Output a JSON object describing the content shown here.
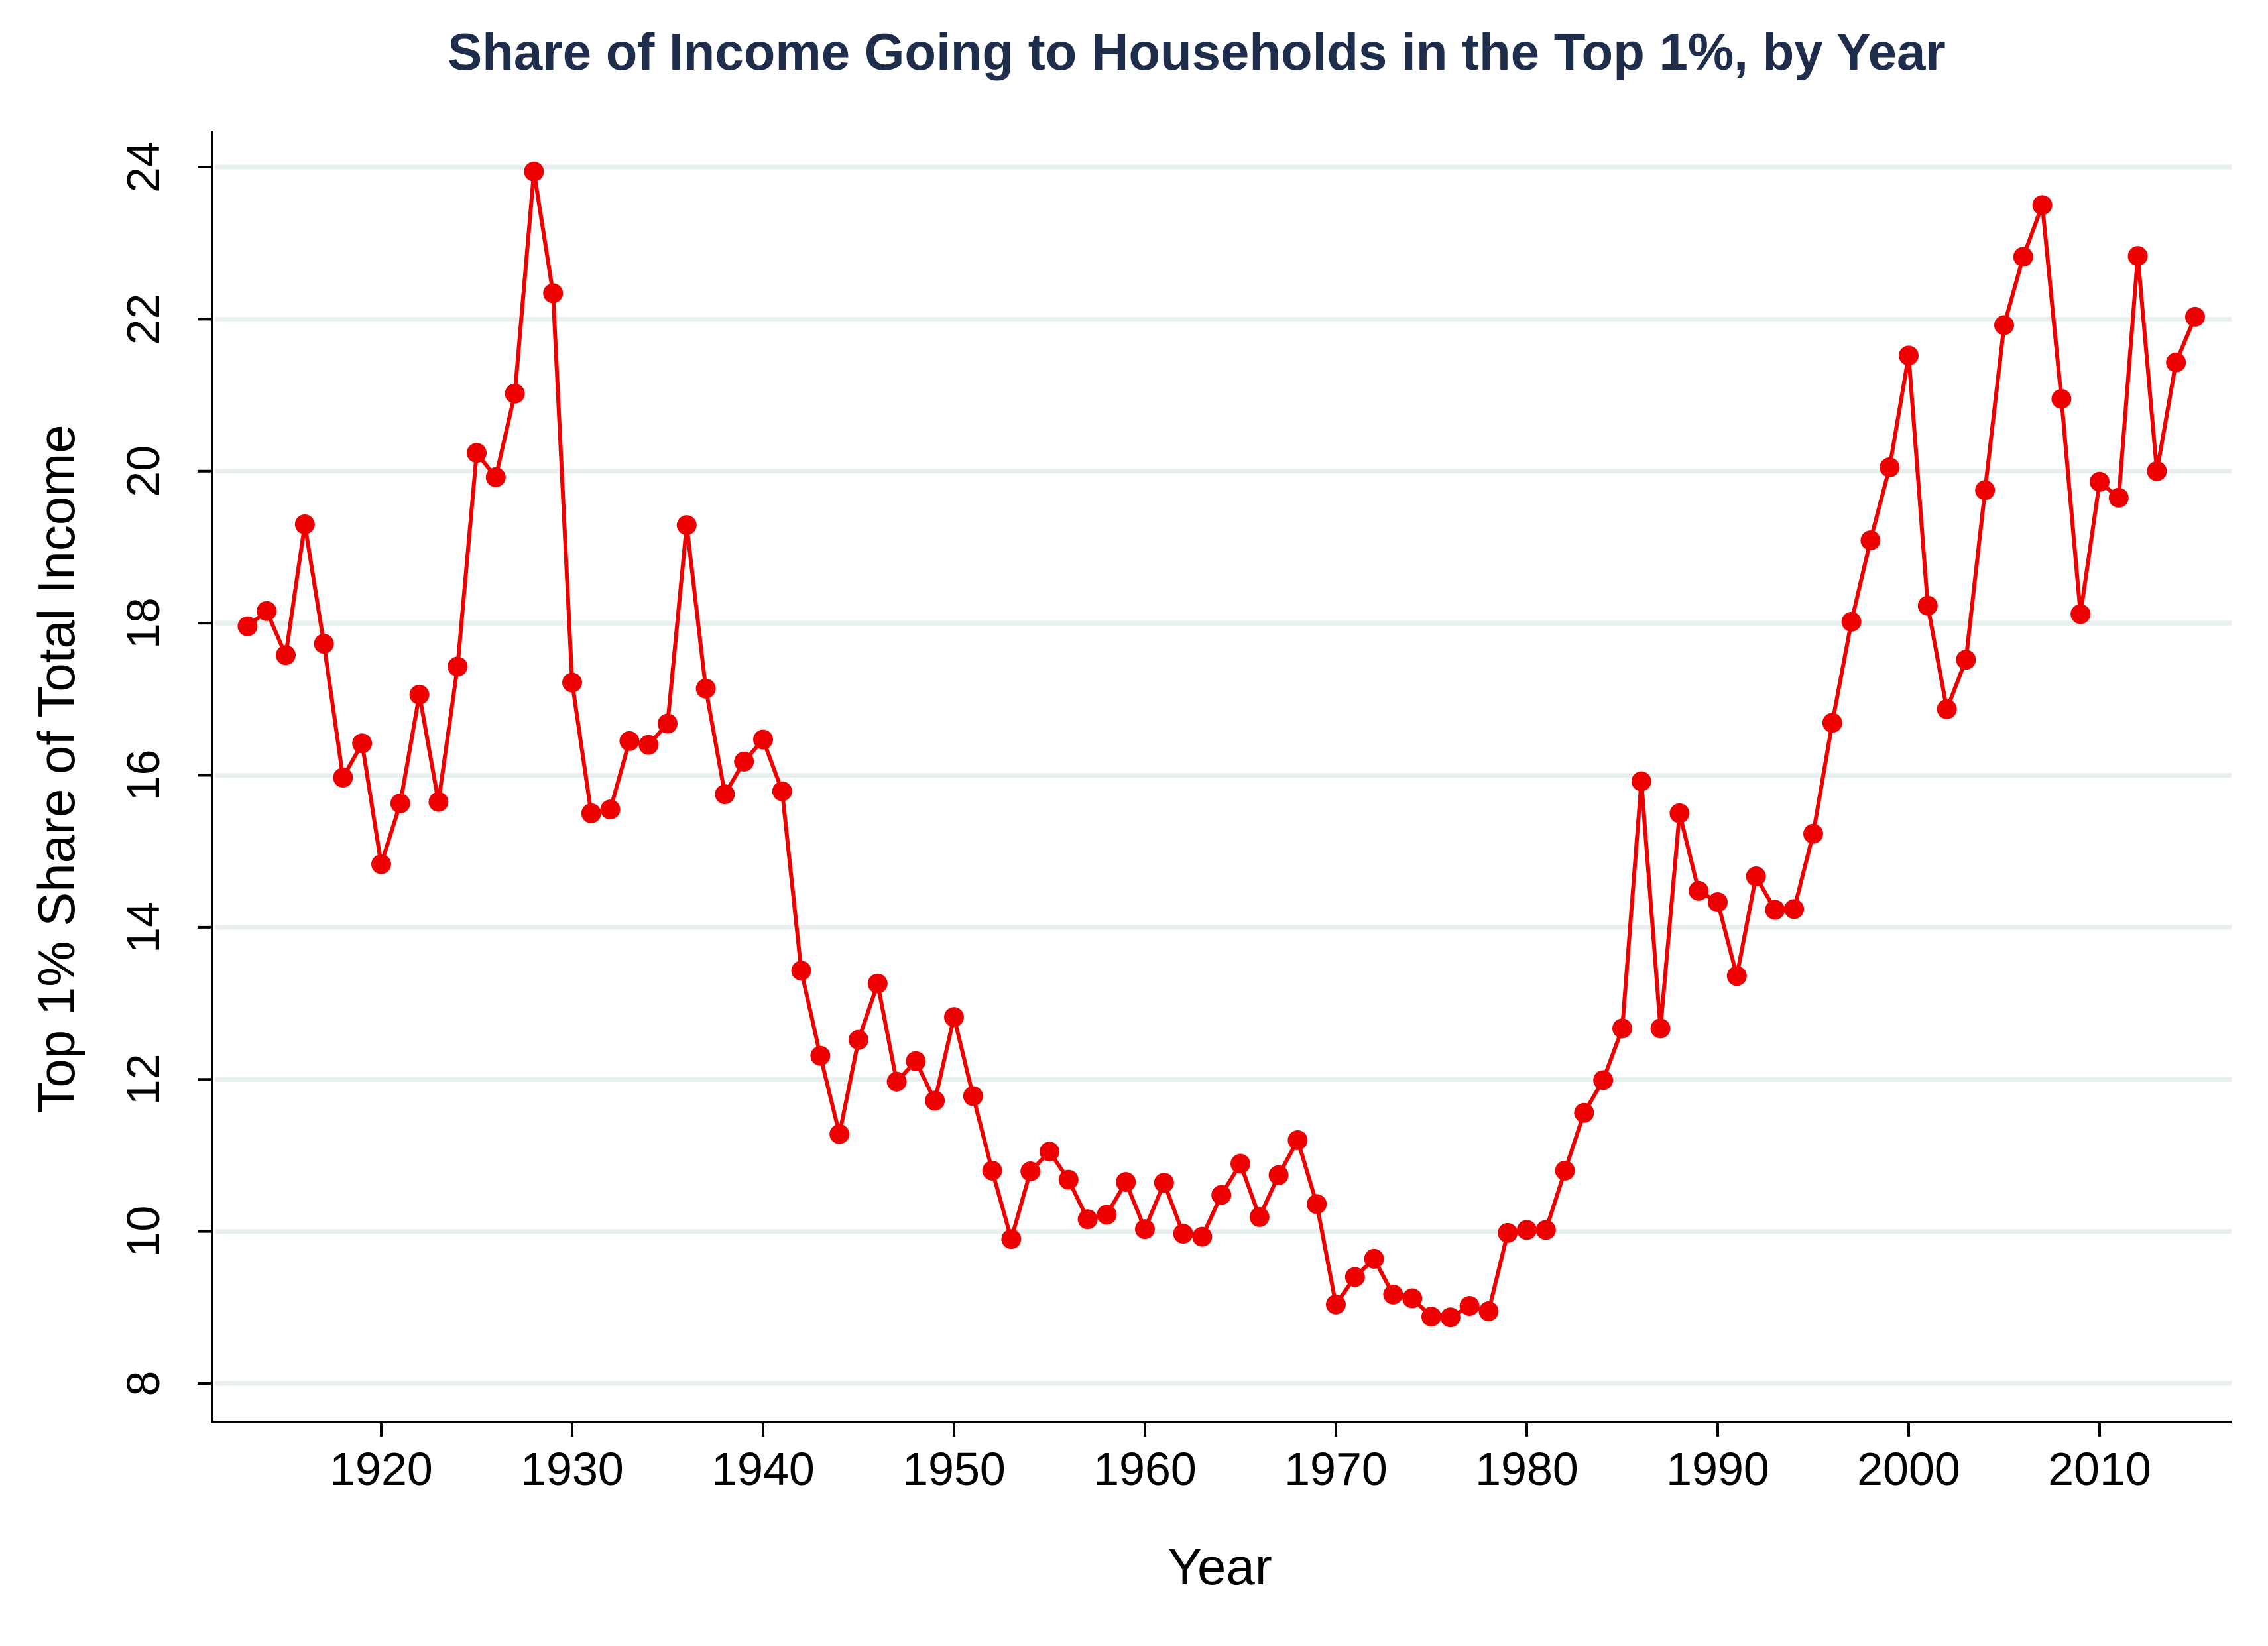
{
  "chart_data": {
    "type": "line",
    "title": "Share of Income Going to Households in the Top 1%, by Year",
    "xlabel": "Year",
    "ylabel": "Top 1% Share of Total Income",
    "xlim": [
      1911,
      2017
    ],
    "ylim": [
      7.5,
      24.5
    ],
    "xticks": [
      1920,
      1930,
      1940,
      1950,
      1960,
      1970,
      1980,
      1990,
      2000,
      2010
    ],
    "yticks": [
      8,
      10,
      12,
      14,
      16,
      18,
      20,
      22,
      24
    ],
    "grid": "horizontal",
    "colors": {
      "series": "#ee0000",
      "grid": "#e8efee",
      "title": "#1f2d4d"
    },
    "series": [
      {
        "x": [
          1913,
          1914,
          1915,
          1916,
          1917,
          1918,
          1919,
          1920,
          1921,
          1922,
          1923,
          1924,
          1925,
          1926,
          1927,
          1928,
          1929,
          1930,
          1931,
          1932,
          1933,
          1934,
          1935,
          1936,
          1937,
          1938,
          1939,
          1940,
          1941,
          1942,
          1943,
          1944,
          1945,
          1946,
          1947,
          1948,
          1949,
          1950,
          1951,
          1952,
          1953,
          1954,
          1955,
          1956,
          1957,
          1958,
          1959,
          1960,
          1961,
          1962,
          1963,
          1964,
          1965,
          1966,
          1967,
          1968,
          1969,
          1970,
          1971,
          1972,
          1973,
          1974,
          1975,
          1976,
          1977,
          1978,
          1979,
          1980,
          1981,
          1982,
          1983,
          1984,
          1985,
          1986,
          1987,
          1988,
          1989,
          1990,
          1991,
          1992,
          1993,
          1994,
          1995,
          1996,
          1997,
          1998,
          1999,
          2000,
          2001,
          2002,
          2003,
          2004,
          2005,
          2006,
          2007,
          2008,
          2009,
          2010,
          2011,
          2012,
          2013,
          2014,
          2015
        ],
        "values": [
          17.96,
          18.16,
          17.58,
          19.3,
          17.73,
          15.97,
          16.42,
          14.83,
          15.63,
          17.06,
          15.65,
          17.43,
          20.24,
          19.92,
          21.02,
          23.94,
          22.34,
          17.22,
          15.5,
          15.55,
          16.45,
          16.4,
          16.68,
          19.29,
          17.14,
          15.75,
          16.18,
          16.47,
          15.79,
          13.43,
          12.31,
          11.28,
          12.52,
          13.26,
          11.97,
          12.24,
          11.72,
          12.82,
          11.78,
          10.8,
          9.9,
          10.79,
          11.05,
          10.68,
          10.16,
          10.22,
          10.65,
          10.03,
          10.64,
          9.97,
          9.93,
          10.48,
          10.89,
          10.19,
          10.74,
          11.2,
          10.36,
          9.04,
          9.4,
          9.64,
          9.17,
          9.12,
          8.88,
          8.87,
          9.02,
          8.95,
          9.98,
          10.02,
          10.02,
          10.8,
          11.56,
          11.99,
          12.67,
          15.92,
          12.67,
          15.5,
          14.48,
          14.33,
          13.36,
          14.67,
          14.23,
          14.24,
          15.23,
          16.69,
          18.02,
          19.09,
          20.05,
          21.52,
          18.23,
          16.87,
          17.52,
          19.75,
          21.92,
          22.82,
          23.5,
          20.95,
          18.12,
          19.86,
          19.65,
          22.83,
          20.0,
          21.43,
          22.03
        ]
      }
    ]
  }
}
